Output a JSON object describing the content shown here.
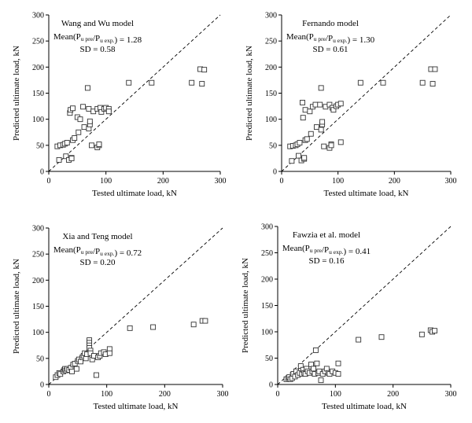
{
  "chart_data": [
    {
      "type": "scatter",
      "title": "",
      "xlabel": "Tested ultimate load, kN",
      "ylabel": "Predicted ultimate load, kN",
      "xlim": [
        0,
        300
      ],
      "ylim": [
        0,
        300
      ],
      "xticks": [
        "0",
        "100",
        "200",
        "300"
      ],
      "yticks": [
        "0",
        "50",
        "100",
        "150",
        "200",
        "250",
        "300"
      ],
      "grid": false,
      "reference_line": "y = x (dashed)",
      "annotation": {
        "model": "Wang and Wu model",
        "mean_prefix": "Mean(P",
        "mean_sub1": "u pre",
        "mean_mid": "/P",
        "mean_sub2": "u exp.",
        "mean_suffix": ") = 1.28",
        "sd": "SD = 0.58"
      },
      "points": [
        [
          15,
          48
        ],
        [
          18,
          22
        ],
        [
          20,
          50
        ],
        [
          25,
          51
        ],
        [
          28,
          53
        ],
        [
          30,
          29
        ],
        [
          32,
          55
        ],
        [
          35,
          22
        ],
        [
          37,
          112
        ],
        [
          38,
          118
        ],
        [
          40,
          26
        ],
        [
          40,
          25
        ],
        [
          42,
          121
        ],
        [
          42,
          60
        ],
        [
          45,
          64
        ],
        [
          50,
          104
        ],
        [
          52,
          75
        ],
        [
          55,
          100
        ],
        [
          60,
          124
        ],
        [
          62,
          85
        ],
        [
          68,
          160
        ],
        [
          70,
          120
        ],
        [
          70,
          82
        ],
        [
          72,
          90
        ],
        [
          72,
          96
        ],
        [
          75,
          50
        ],
        [
          78,
          115
        ],
        [
          85,
          46
        ],
        [
          85,
          120
        ],
        [
          88,
          50
        ],
        [
          88,
          52
        ],
        [
          90,
          122
        ],
        [
          92,
          114
        ],
        [
          97,
          120
        ],
        [
          100,
          122
        ],
        [
          105,
          120
        ],
        [
          105,
          115
        ],
        [
          140,
          170
        ],
        [
          180,
          170
        ],
        [
          250,
          170
        ],
        [
          265,
          196
        ],
        [
          268,
          168
        ],
        [
          272,
          195
        ]
      ]
    },
    {
      "type": "scatter",
      "title": "",
      "xlabel": "Tested ultimate load, kN",
      "ylabel": "Predicted ultimate load, kN",
      "xlim": [
        0,
        300
      ],
      "ylim": [
        0,
        300
      ],
      "xticks": [
        "0",
        "100",
        "200",
        "300"
      ],
      "yticks": [
        "0",
        "50",
        "100",
        "150",
        "200",
        "250",
        "300"
      ],
      "grid": false,
      "reference_line": "y = x (dashed)",
      "annotation": {
        "model": "Fernando model",
        "mean_prefix": "Mean(P",
        "mean_sub1": "u pre",
        "mean_mid": "/P",
        "mean_sub2": "u exp.",
        "mean_suffix": ") = 1.30",
        "sd": "SD = 0.61"
      },
      "points": [
        [
          15,
          48
        ],
        [
          18,
          20
        ],
        [
          20,
          49
        ],
        [
          25,
          50
        ],
        [
          28,
          52
        ],
        [
          30,
          30
        ],
        [
          32,
          55
        ],
        [
          35,
          21
        ],
        [
          37,
          132
        ],
        [
          38,
          103
        ],
        [
          40,
          24
        ],
        [
          40,
          26
        ],
        [
          42,
          118
        ],
        [
          42,
          60
        ],
        [
          45,
          62
        ],
        [
          50,
          115
        ],
        [
          52,
          72
        ],
        [
          55,
          124
        ],
        [
          60,
          128
        ],
        [
          62,
          85
        ],
        [
          68,
          128
        ],
        [
          70,
          160
        ],
        [
          70,
          80
        ],
        [
          72,
          90
        ],
        [
          72,
          95
        ],
        [
          75,
          48
        ],
        [
          78,
          124
        ],
        [
          85,
          45
        ],
        [
          85,
          128
        ],
        [
          88,
          52
        ],
        [
          88,
          50
        ],
        [
          90,
          122
        ],
        [
          92,
          118
        ],
        [
          97,
          125
        ],
        [
          100,
          128
        ],
        [
          105,
          130
        ],
        [
          105,
          56
        ],
        [
          140,
          170
        ],
        [
          180,
          170
        ],
        [
          250,
          170
        ],
        [
          265,
          196
        ],
        [
          268,
          168
        ],
        [
          272,
          196
        ]
      ]
    },
    {
      "type": "scatter",
      "title": "",
      "xlabel": "Tested ultimate load, kN",
      "ylabel": "Predicted ultimate load, kN",
      "xlim": [
        0,
        300
      ],
      "ylim": [
        0,
        300
      ],
      "xticks": [
        "0",
        "100",
        "200",
        "300"
      ],
      "yticks": [
        "0",
        "50",
        "100",
        "150",
        "200",
        "250",
        "300"
      ],
      "grid": false,
      "reference_line": "y = x (dashed)",
      "annotation": {
        "model": "Xia and Teng model",
        "mean_prefix": "Mean(P",
        "mean_sub1": "u pre",
        "mean_mid": "/P",
        "mean_sub2": "u exp.",
        "mean_suffix": ") = 0.72",
        "sd": "SD = 0.20"
      },
      "points": [
        [
          12,
          14
        ],
        [
          15,
          18
        ],
        [
          18,
          22
        ],
        [
          20,
          20
        ],
        [
          25,
          25
        ],
        [
          27,
          28
        ],
        [
          28,
          30
        ],
        [
          30,
          27
        ],
        [
          32,
          30
        ],
        [
          35,
          28
        ],
        [
          38,
          32
        ],
        [
          40,
          25
        ],
        [
          42,
          38
        ],
        [
          45,
          40
        ],
        [
          48,
          30
        ],
        [
          50,
          45
        ],
        [
          52,
          48
        ],
        [
          55,
          44
        ],
        [
          58,
          52
        ],
        [
          60,
          55
        ],
        [
          62,
          60
        ],
        [
          64,
          50
        ],
        [
          66,
          58
        ],
        [
          70,
          85
        ],
        [
          70,
          80
        ],
        [
          70,
          75
        ],
        [
          70,
          70
        ],
        [
          72,
          65
        ],
        [
          72,
          60
        ],
        [
          75,
          48
        ],
        [
          78,
          55
        ],
        [
          82,
          18
        ],
        [
          85,
          52
        ],
        [
          88,
          55
        ],
        [
          90,
          60
        ],
        [
          95,
          62
        ],
        [
          98,
          58
        ],
        [
          105,
          68
        ],
        [
          105,
          60
        ],
        [
          140,
          108
        ],
        [
          180,
          110
        ],
        [
          250,
          115
        ],
        [
          265,
          122
        ],
        [
          270,
          122
        ]
      ]
    },
    {
      "type": "scatter",
      "title": "",
      "xlabel": "Tested ultimate load, kN",
      "ylabel": "Predicted ultimate load, kN",
      "xlim": [
        0,
        300
      ],
      "ylim": [
        0,
        300
      ],
      "xticks": [
        "0",
        "100",
        "200",
        "300"
      ],
      "yticks": [
        "0",
        "50",
        "100",
        "150",
        "200",
        "250",
        "300"
      ],
      "grid": false,
      "reference_line": "y = x (dashed)",
      "annotation": {
        "model": "Fawzia et al. model",
        "mean_prefix": "Mean(P",
        "mean_sub1": "u pre",
        "mean_mid": "/P",
        "mean_sub2": "u exp.",
        "mean_suffix": ") = 0.41",
        "sd": "SD = 0.16"
      },
      "points": [
        [
          15,
          10
        ],
        [
          18,
          12
        ],
        [
          20,
          14
        ],
        [
          22,
          10
        ],
        [
          25,
          12
        ],
        [
          27,
          20
        ],
        [
          30,
          15
        ],
        [
          32,
          25
        ],
        [
          35,
          18
        ],
        [
          38,
          22
        ],
        [
          40,
          35
        ],
        [
          42,
          20
        ],
        [
          44,
          28
        ],
        [
          46,
          22
        ],
        [
          48,
          20
        ],
        [
          50,
          30
        ],
        [
          52,
          25
        ],
        [
          55,
          22
        ],
        [
          58,
          38
        ],
        [
          60,
          25
        ],
        [
          62,
          30
        ],
        [
          64,
          20
        ],
        [
          66,
          65
        ],
        [
          68,
          40
        ],
        [
          70,
          22
        ],
        [
          72,
          25
        ],
        [
          75,
          8
        ],
        [
          78,
          20
        ],
        [
          82,
          25
        ],
        [
          85,
          30
        ],
        [
          88,
          22
        ],
        [
          90,
          20
        ],
        [
          95,
          25
        ],
        [
          100,
          22
        ],
        [
          105,
          40
        ],
        [
          105,
          20
        ],
        [
          140,
          85
        ],
        [
          180,
          90
        ],
        [
          250,
          95
        ],
        [
          265,
          103
        ],
        [
          268,
          100
        ],
        [
          272,
          102
        ]
      ]
    }
  ]
}
